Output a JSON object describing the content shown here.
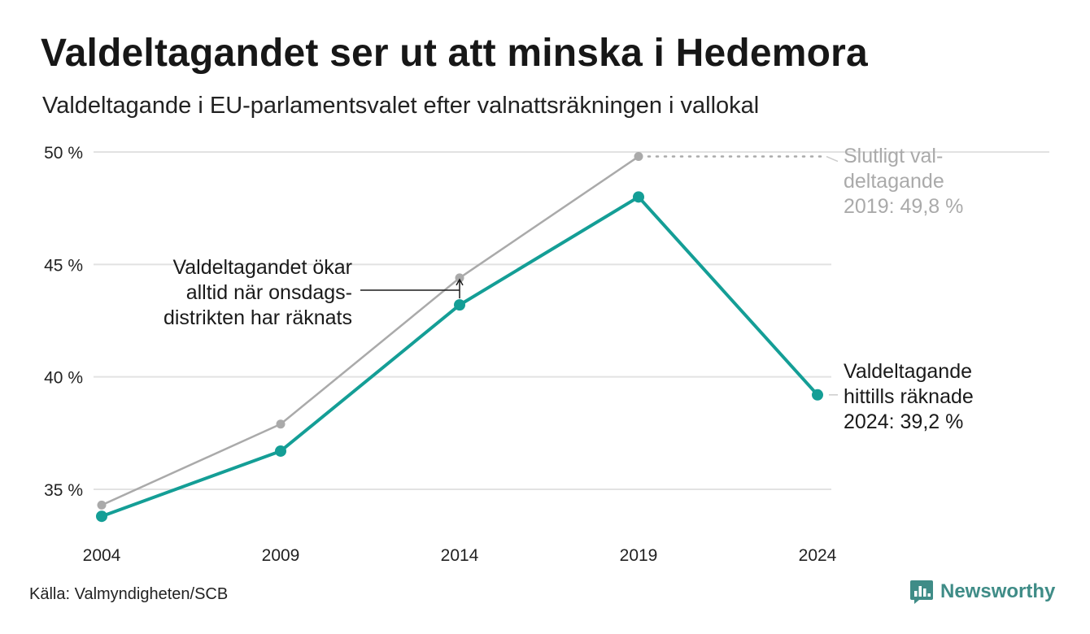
{
  "title": "Valdeltagandet ser ut att minska i Hedemora",
  "subtitle": "Valdeltagande i EU-parlamentsvalet efter valnattsräkningen i vallokal",
  "source": "Källa: Valmyndigheten/SCB",
  "brand": {
    "name": "Newsworthy",
    "icon": "newsworthy-logo-icon"
  },
  "colors": {
    "primary": "#149e96",
    "secondary": "#aaaaaa",
    "grid": "#e2e2e2",
    "brand": "#3f8c87"
  },
  "chart_data": {
    "type": "line",
    "x": [
      2004,
      2009,
      2014,
      2019,
      2024
    ],
    "xticks": [
      "2004",
      "2009",
      "2014",
      "2019",
      "2024"
    ],
    "ylim": [
      33,
      50
    ],
    "yticks": [
      {
        "value": 35,
        "label": "35 %"
      },
      {
        "value": 40,
        "label": "40 %"
      },
      {
        "value": 45,
        "label": "45 %"
      },
      {
        "value": 50,
        "label": "50 %"
      }
    ],
    "grid": true,
    "series": [
      {
        "values": [
          34.3,
          37.9,
          44.4,
          49.8,
          null
        ]
      },
      {
        "values": [
          33.8,
          36.7,
          43.2,
          48.0,
          39.2
        ]
      }
    ],
    "annotations": {
      "final_2019": [
        "Slutligt val-",
        "deltagande",
        "2019: 49,8 %"
      ],
      "current_2024": [
        "Valdeltagande",
        "hittills räknade",
        "2024: 39,2 %"
      ],
      "wednesday_note": [
        "Valdeltagandet ökar",
        "alltid när onsdags-",
        "distrikten har räknats"
      ]
    }
  }
}
